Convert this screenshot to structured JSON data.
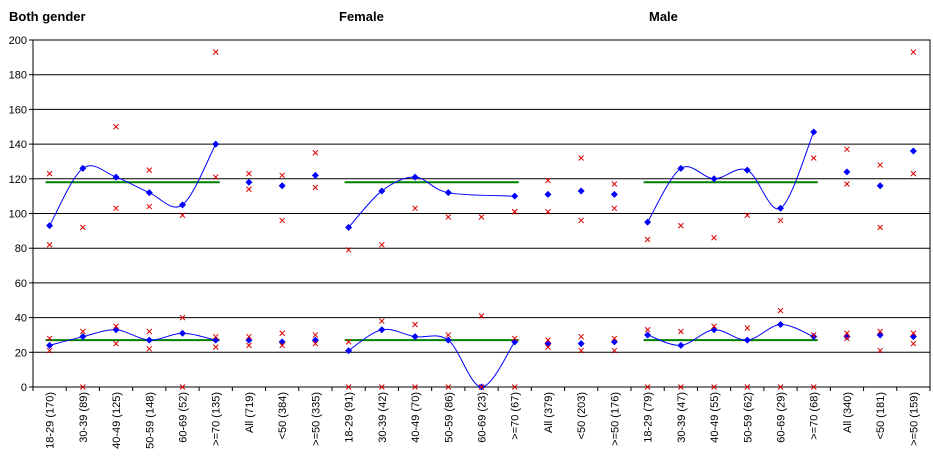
{
  "chart_data": {
    "type": "scatter",
    "panel_titles": [
      "Both gender",
      "Female",
      "Male"
    ],
    "ylim": [
      0,
      200
    ],
    "yticks": [
      0,
      20,
      40,
      60,
      80,
      100,
      120,
      140,
      160,
      180,
      200
    ],
    "grid": true,
    "categories": [
      "18-29 (170)",
      "30-39 (89)",
      "40-49 (125)",
      "50-59 (148)",
      "60-69 (52)",
      ">=70 (135)",
      "All (719)",
      "<50 (384)",
      ">=50 (335)",
      "18-29 (91)",
      "30-39 (42)",
      "40-49 (70)",
      "50-59 (86)",
      "60-69 (23)",
      ">=70 (67)",
      "All (379)",
      "<50 (203)",
      ">=50 (176)",
      "18-29 (79)",
      "30-39 (47)",
      "40-49 (55)",
      "50-59 (62)",
      "60-69 (29)",
      ">=70 (68)",
      "All (340)",
      "<50 (181)",
      ">=50 (159)"
    ],
    "series": [
      {
        "color": "#0000ff",
        "marker": "diamond",
        "values": [
          93,
          126,
          121,
          112,
          105,
          140,
          118,
          116,
          122,
          92,
          113,
          121,
          112,
          null,
          110,
          111,
          113,
          111,
          95,
          126,
          120,
          125,
          103,
          147,
          124,
          116,
          136
        ]
      },
      {
        "color": "#0000ff",
        "marker": "diamond",
        "values": [
          24,
          29,
          33,
          27,
          31,
          27,
          27,
          26,
          27,
          21,
          33,
          29,
          27,
          0,
          26,
          25,
          25,
          26,
          30,
          24,
          33,
          27,
          36,
          29,
          29,
          30,
          29
        ]
      },
      {
        "color": "#dd0000",
        "marker": "x",
        "values": [
          123,
          92,
          150,
          125,
          99,
          193,
          123,
          122,
          135,
          79,
          82,
          103,
          98,
          98,
          101,
          119,
          132,
          117,
          85,
          93,
          86,
          99,
          96,
          132,
          137,
          128,
          193
        ]
      },
      {
        "color": "#dd0000",
        "marker": "x",
        "values": [
          82,
          null,
          103,
          104,
          null,
          121,
          114,
          96,
          115,
          null,
          null,
          null,
          null,
          null,
          101,
          101,
          96,
          103,
          null,
          null,
          null,
          null,
          null,
          null,
          117,
          92,
          123
        ]
      },
      {
        "color": "#dd0000",
        "marker": "x",
        "values": [
          28,
          32,
          35,
          32,
          40,
          29,
          29,
          31,
          30,
          26,
          38,
          36,
          30,
          41,
          28,
          27,
          29,
          28,
          33,
          32,
          35,
          34,
          44,
          30,
          31,
          32,
          31
        ]
      },
      {
        "color": "#dd0000",
        "marker": "x",
        "values": [
          21,
          0,
          25,
          22,
          0,
          23,
          24,
          24,
          25,
          0,
          0,
          0,
          0,
          0,
          0,
          23,
          21,
          21,
          0,
          0,
          0,
          0,
          0,
          0,
          28,
          21,
          25
        ]
      }
    ],
    "mean_lines": [
      {
        "color": "#008000",
        "value": 118,
        "from": 0,
        "to": 5
      },
      {
        "color": "#008000",
        "value": 27,
        "from": 0,
        "to": 5
      },
      {
        "color": "#008000",
        "value": 118,
        "from": 9,
        "to": 14
      },
      {
        "color": "#008000",
        "value": 27,
        "from": 9,
        "to": 14
      },
      {
        "color": "#008000",
        "value": 118,
        "from": 18,
        "to": 23
      },
      {
        "color": "#008000",
        "value": 27,
        "from": 18,
        "to": 23
      }
    ],
    "smooth_groups": [
      [
        0,
        5
      ],
      [
        9,
        14
      ],
      [
        18,
        23
      ]
    ]
  }
}
